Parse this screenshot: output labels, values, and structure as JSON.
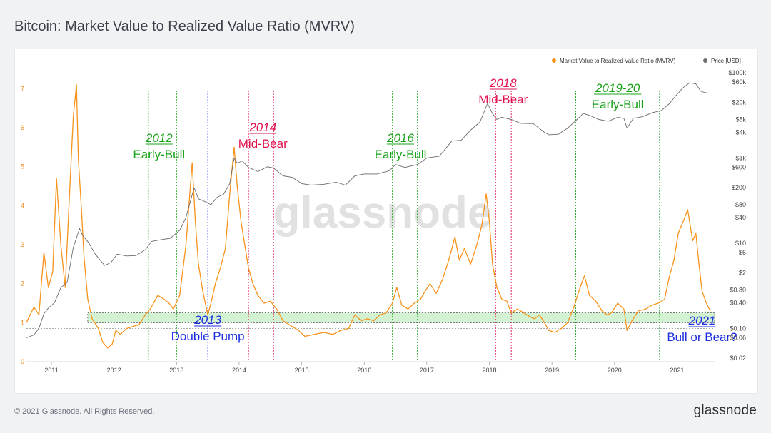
{
  "title": "Bitcoin: Market Value to Realized Value Ratio (MVRV)",
  "footer": "© 2021 Glassnode. All Rights Reserved.",
  "brand": "glassnode",
  "watermark": "glassnode",
  "legend": {
    "mvrv": "Market Value to Realized Value Ratio (MVRV)",
    "price": "Price [USD]",
    "mvrv_color": "#f7931a",
    "price_color": "#6b6b6b"
  },
  "annotations": [
    {
      "lines": [
        "2012",
        "Early-Bull"
      ],
      "color": "#1aa31a",
      "date": 2012.72
    },
    {
      "lines": [
        "2014",
        "Mid-Bear"
      ],
      "color": "#e0134f",
      "date": 2014.38
    },
    {
      "lines": [
        "2016",
        "Early-Bull"
      ],
      "color": "#1aa31a",
      "date": 2016.58
    },
    {
      "lines": [
        "2018",
        "Mid-Bear"
      ],
      "color": "#e0134f",
      "date": 2018.22
    },
    {
      "lines": [
        "2019-20",
        "Early-Bull"
      ],
      "color": "#1aa31a",
      "date": 2020.05
    },
    {
      "lines": [
        "2013",
        "Double Pump"
      ],
      "color": "#1a2ee0",
      "date": 2013.5
    },
    {
      "lines": [
        "2021",
        "Bull or Bear?"
      ],
      "color": "#1a2ee0",
      "date": 2021.4
    }
  ],
  "chart_data": {
    "type": "line",
    "x_unit": "year",
    "xlim": [
      2010.6,
      2021.6
    ],
    "x_ticks": [
      "2011",
      "2012",
      "2013",
      "2014",
      "2015",
      "2016",
      "2017",
      "2018",
      "2019",
      "2020",
      "2021"
    ],
    "y_left": {
      "ticks": [
        "0",
        "1",
        "2",
        "3",
        "4",
        "5",
        "6",
        "7"
      ],
      "range": [
        0,
        7.5
      ]
    },
    "y_right": {
      "scale": "log",
      "ticks": [
        "$0.02",
        "$0.06",
        "$0.10",
        "$0.40",
        "$0.80",
        "$2",
        "$6",
        "$10",
        "$40",
        "$80",
        "$200",
        "$600",
        "$1k",
        "$4k",
        "$8k",
        "$20k",
        "$60k",
        "$100k"
      ],
      "tick_values": [
        0.02,
        0.06,
        0.1,
        0.4,
        0.8,
        2,
        6,
        10,
        40,
        80,
        200,
        600,
        1000,
        4000,
        8000,
        20000,
        60000,
        100000
      ]
    },
    "band": {
      "low": 1.0,
      "high": 1.25,
      "color": "#9be39b"
    },
    "reference_line": 0.85,
    "vlines": [
      {
        "x": 2012.55,
        "color": "#1aa31a"
      },
      {
        "x": 2013.0,
        "color": "#1aa31a"
      },
      {
        "x": 2013.5,
        "color": "#1a2ee0"
      },
      {
        "x": 2014.15,
        "color": "#e0134f"
      },
      {
        "x": 2014.55,
        "color": "#e0134f"
      },
      {
        "x": 2016.45,
        "color": "#1aa31a"
      },
      {
        "x": 2016.85,
        "color": "#1aa31a"
      },
      {
        "x": 2018.1,
        "color": "#e0134f"
      },
      {
        "x": 2018.35,
        "color": "#e0134f"
      },
      {
        "x": 2019.38,
        "color": "#1aa31a"
      },
      {
        "x": 2020.72,
        "color": "#1aa31a"
      },
      {
        "x": 2021.4,
        "color": "#1a2ee0"
      }
    ],
    "series": [
      {
        "name": "Market Value to Realized Value Ratio (MVRV)",
        "axis": "left",
        "color": "#f7931a",
        "points": [
          [
            2010.6,
            1.0
          ],
          [
            2010.72,
            1.4
          ],
          [
            2010.8,
            1.2
          ],
          [
            2010.88,
            2.8
          ],
          [
            2010.95,
            1.9
          ],
          [
            2011.02,
            2.3
          ],
          [
            2011.08,
            4.7
          ],
          [
            2011.15,
            3.0
          ],
          [
            2011.22,
            1.9
          ],
          [
            2011.28,
            4.0
          ],
          [
            2011.35,
            6.3
          ],
          [
            2011.4,
            7.1
          ],
          [
            2011.43,
            5.2
          ],
          [
            2011.48,
            3.9
          ],
          [
            2011.52,
            2.7
          ],
          [
            2011.58,
            1.6
          ],
          [
            2011.65,
            1.1
          ],
          [
            2011.75,
            0.85
          ],
          [
            2011.82,
            0.5
          ],
          [
            2011.9,
            0.35
          ],
          [
            2011.97,
            0.45
          ],
          [
            2012.03,
            0.8
          ],
          [
            2012.1,
            0.7
          ],
          [
            2012.2,
            0.85
          ],
          [
            2012.3,
            0.9
          ],
          [
            2012.4,
            0.95
          ],
          [
            2012.5,
            1.2
          ],
          [
            2012.58,
            1.35
          ],
          [
            2012.7,
            1.7
          ],
          [
            2012.8,
            1.6
          ],
          [
            2012.88,
            1.5
          ],
          [
            2012.95,
            1.35
          ],
          [
            2013.05,
            1.7
          ],
          [
            2013.15,
            3.0
          ],
          [
            2013.25,
            5.1
          ],
          [
            2013.3,
            3.6
          ],
          [
            2013.35,
            2.5
          ],
          [
            2013.42,
            1.8
          ],
          [
            2013.5,
            1.2
          ],
          [
            2013.55,
            1.5
          ],
          [
            2013.62,
            2.0
          ],
          [
            2013.7,
            2.4
          ],
          [
            2013.78,
            2.9
          ],
          [
            2013.85,
            4.3
          ],
          [
            2013.92,
            5.5
          ],
          [
            2013.97,
            4.5
          ],
          [
            2014.03,
            3.6
          ],
          [
            2014.1,
            2.9
          ],
          [
            2014.15,
            2.4
          ],
          [
            2014.22,
            2.0
          ],
          [
            2014.3,
            1.7
          ],
          [
            2014.4,
            1.5
          ],
          [
            2014.5,
            1.55
          ],
          [
            2014.6,
            1.35
          ],
          [
            2014.7,
            1.05
          ],
          [
            2014.85,
            0.9
          ],
          [
            2014.95,
            0.8
          ],
          [
            2015.05,
            0.65
          ],
          [
            2015.2,
            0.7
          ],
          [
            2015.35,
            0.75
          ],
          [
            2015.5,
            0.7
          ],
          [
            2015.62,
            0.8
          ],
          [
            2015.75,
            0.85
          ],
          [
            2015.85,
            1.2
          ],
          [
            2015.95,
            1.05
          ],
          [
            2016.05,
            1.1
          ],
          [
            2016.15,
            1.05
          ],
          [
            2016.25,
            1.2
          ],
          [
            2016.35,
            1.25
          ],
          [
            2016.45,
            1.5
          ],
          [
            2016.52,
            1.9
          ],
          [
            2016.6,
            1.45
          ],
          [
            2016.7,
            1.35
          ],
          [
            2016.8,
            1.5
          ],
          [
            2016.9,
            1.6
          ],
          [
            2016.97,
            1.8
          ],
          [
            2017.05,
            2.0
          ],
          [
            2017.15,
            1.75
          ],
          [
            2017.25,
            2.1
          ],
          [
            2017.35,
            2.6
          ],
          [
            2017.45,
            3.2
          ],
          [
            2017.52,
            2.6
          ],
          [
            2017.6,
            2.9
          ],
          [
            2017.7,
            2.5
          ],
          [
            2017.8,
            3.0
          ],
          [
            2017.88,
            3.5
          ],
          [
            2017.95,
            4.3
          ],
          [
            2018.0,
            3.6
          ],
          [
            2018.05,
            2.5
          ],
          [
            2018.12,
            1.9
          ],
          [
            2018.2,
            1.6
          ],
          [
            2018.28,
            1.55
          ],
          [
            2018.35,
            1.25
          ],
          [
            2018.45,
            1.35
          ],
          [
            2018.55,
            1.25
          ],
          [
            2018.65,
            1.15
          ],
          [
            2018.72,
            1.1
          ],
          [
            2018.8,
            1.2
          ],
          [
            2018.88,
            1.0
          ],
          [
            2018.95,
            0.8
          ],
          [
            2019.05,
            0.75
          ],
          [
            2019.15,
            0.85
          ],
          [
            2019.25,
            1.0
          ],
          [
            2019.35,
            1.4
          ],
          [
            2019.45,
            1.9
          ],
          [
            2019.52,
            2.2
          ],
          [
            2019.6,
            1.7
          ],
          [
            2019.7,
            1.55
          ],
          [
            2019.8,
            1.3
          ],
          [
            2019.88,
            1.2
          ],
          [
            2019.95,
            1.25
          ],
          [
            2020.05,
            1.5
          ],
          [
            2020.15,
            1.35
          ],
          [
            2020.2,
            0.8
          ],
          [
            2020.28,
            1.05
          ],
          [
            2020.38,
            1.3
          ],
          [
            2020.5,
            1.35
          ],
          [
            2020.6,
            1.45
          ],
          [
            2020.7,
            1.5
          ],
          [
            2020.8,
            1.6
          ],
          [
            2020.88,
            2.2
          ],
          [
            2020.95,
            2.6
          ],
          [
            2021.02,
            3.3
          ],
          [
            2021.1,
            3.6
          ],
          [
            2021.17,
            3.9
          ],
          [
            2021.25,
            3.1
          ],
          [
            2021.3,
            3.3
          ],
          [
            2021.35,
            2.5
          ],
          [
            2021.4,
            1.8
          ],
          [
            2021.47,
            1.5
          ],
          [
            2021.53,
            1.3
          ]
        ]
      },
      {
        "name": "Price [USD]",
        "axis": "right",
        "color": "#6b6b6b",
        "points": [
          [
            2010.6,
            0.06
          ],
          [
            2010.72,
            0.07
          ],
          [
            2010.8,
            0.1
          ],
          [
            2010.88,
            0.22
          ],
          [
            2010.95,
            0.3
          ],
          [
            2011.05,
            0.4
          ],
          [
            2011.15,
            0.9
          ],
          [
            2011.25,
            1.2
          ],
          [
            2011.35,
            8.0
          ],
          [
            2011.45,
            22.0
          ],
          [
            2011.5,
            15.0
          ],
          [
            2011.6,
            10.0
          ],
          [
            2011.7,
            5.5
          ],
          [
            2011.85,
            3.0
          ],
          [
            2011.95,
            3.5
          ],
          [
            2012.05,
            5.5
          ],
          [
            2012.2,
            5.0
          ],
          [
            2012.35,
            5.1
          ],
          [
            2012.5,
            7.0
          ],
          [
            2012.6,
            11.0
          ],
          [
            2012.75,
            12.0
          ],
          [
            2012.9,
            13.0
          ],
          [
            2013.05,
            20.0
          ],
          [
            2013.15,
            40.0
          ],
          [
            2013.28,
            200.0
          ],
          [
            2013.35,
            110.0
          ],
          [
            2013.45,
            95.0
          ],
          [
            2013.55,
            80.0
          ],
          [
            2013.65,
            120.0
          ],
          [
            2013.75,
            140.0
          ],
          [
            2013.85,
            250.0
          ],
          [
            2013.92,
            1000.0
          ],
          [
            2013.97,
            750.0
          ],
          [
            2014.05,
            850.0
          ],
          [
            2014.15,
            600.0
          ],
          [
            2014.3,
            480.0
          ],
          [
            2014.45,
            620.0
          ],
          [
            2014.55,
            580.0
          ],
          [
            2014.7,
            380.0
          ],
          [
            2014.85,
            350.0
          ],
          [
            2015.0,
            250.0
          ],
          [
            2015.15,
            230.0
          ],
          [
            2015.35,
            240.0
          ],
          [
            2015.55,
            270.0
          ],
          [
            2015.7,
            230.0
          ],
          [
            2015.85,
            380.0
          ],
          [
            2016.0,
            420.0
          ],
          [
            2016.2,
            420.0
          ],
          [
            2016.4,
            500.0
          ],
          [
            2016.5,
            700.0
          ],
          [
            2016.65,
            600.0
          ],
          [
            2016.85,
            700.0
          ],
          [
            2017.0,
            1000.0
          ],
          [
            2017.2,
            1100.0
          ],
          [
            2017.4,
            2500.0
          ],
          [
            2017.55,
            2600.0
          ],
          [
            2017.7,
            4500.0
          ],
          [
            2017.85,
            7000.0
          ],
          [
            2017.97,
            19000.0
          ],
          [
            2018.05,
            11000.0
          ],
          [
            2018.12,
            8000.0
          ],
          [
            2018.2,
            9000.0
          ],
          [
            2018.35,
            8000.0
          ],
          [
            2018.5,
            6500.0
          ],
          [
            2018.7,
            6400.0
          ],
          [
            2018.88,
            4000.0
          ],
          [
            2018.95,
            3500.0
          ],
          [
            2019.1,
            3600.0
          ],
          [
            2019.25,
            5000.0
          ],
          [
            2019.4,
            8000.0
          ],
          [
            2019.5,
            11000.0
          ],
          [
            2019.6,
            10000.0
          ],
          [
            2019.75,
            8000.0
          ],
          [
            2019.9,
            7300.0
          ],
          [
            2020.05,
            9000.0
          ],
          [
            2020.15,
            8500.0
          ],
          [
            2020.2,
            5000.0
          ],
          [
            2020.3,
            8500.0
          ],
          [
            2020.45,
            9300.0
          ],
          [
            2020.6,
            11500.0
          ],
          [
            2020.75,
            13000.0
          ],
          [
            2020.88,
            19000.0
          ],
          [
            2020.98,
            29000.0
          ],
          [
            2021.1,
            45000.0
          ],
          [
            2021.2,
            58000.0
          ],
          [
            2021.3,
            55000.0
          ],
          [
            2021.38,
            37000.0
          ],
          [
            2021.45,
            34000.0
          ],
          [
            2021.53,
            33000.0
          ]
        ]
      }
    ]
  }
}
